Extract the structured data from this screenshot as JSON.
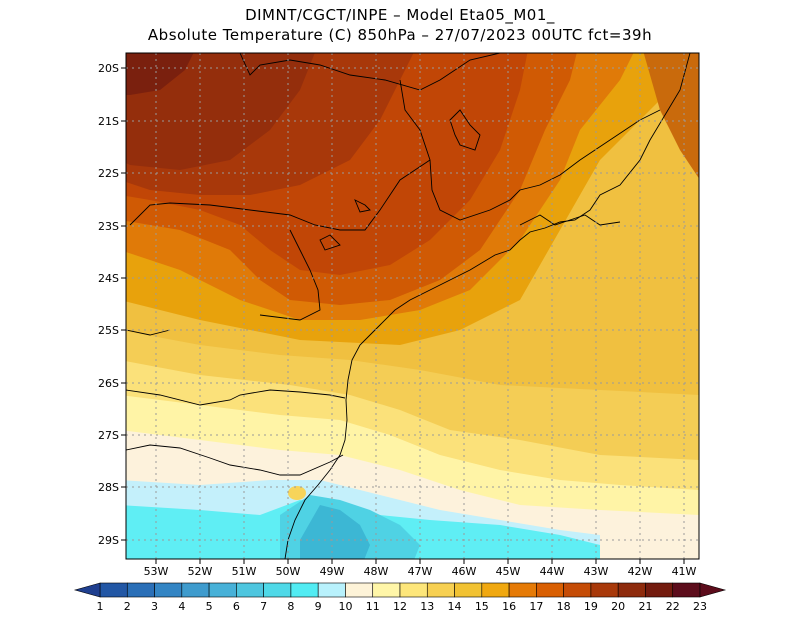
{
  "header": {
    "line1": "DIMNT/CGCT/INPE  –   Model Eta05_M01_",
    "line2": "Absolute Temperature (C) 850hPa  –   27/07/2023 00UTC fct=39h"
  },
  "map": {
    "lat_labels": [
      "20S",
      "21S",
      "22S",
      "23S",
      "24S",
      "25S",
      "26S",
      "27S",
      "28S",
      "29S"
    ],
    "lon_labels": [
      "53W",
      "52W",
      "51W",
      "50W",
      "49W",
      "48W",
      "47W",
      "46W",
      "45W",
      "44W",
      "43W",
      "42W",
      "41W"
    ],
    "lat_range": [
      -29.4,
      -19.8
    ],
    "lon_range": [
      -53.8,
      -40.6
    ]
  },
  "colorbar": {
    "labels": [
      "1",
      "2",
      "3",
      "4",
      "5",
      "6",
      "7",
      "8",
      "9",
      "10",
      "11",
      "12",
      "13",
      "14",
      "15",
      "16",
      "17",
      "18",
      "19",
      "20",
      "21",
      "22",
      "23"
    ],
    "colors": [
      "#1f3f8f",
      "#2257a5",
      "#2a6fb7",
      "#3385c4",
      "#3e9bcd",
      "#47b1d8",
      "#4ec6df",
      "#4fd9e8",
      "#52ecf3",
      "#b8f1fc",
      "#fdf3d8",
      "#fff6a8",
      "#fde67a",
      "#f7d052",
      "#f1c232",
      "#f0a810",
      "#e57a06",
      "#d95f02",
      "#c54c06",
      "#a8390a",
      "#8e2b0c",
      "#731b0e",
      "#5c0c1b"
    ]
  }
}
